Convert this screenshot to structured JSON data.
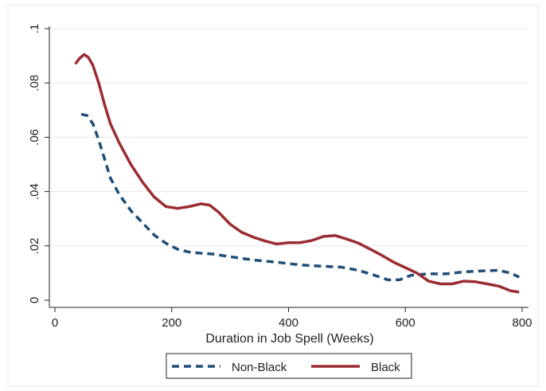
{
  "chart_data": {
    "type": "line",
    "title": "",
    "xlabel": "Duration in Job Spell (Weeks)",
    "ylabel": "",
    "xlim": [
      0,
      800
    ],
    "ylim": [
      0,
      0.1
    ],
    "x_ticks": [
      0,
      200,
      400,
      600,
      800
    ],
    "x_tick_labels": [
      "0",
      "200",
      "400",
      "600",
      "800"
    ],
    "y_ticks": [
      0,
      0.02,
      0.04,
      0.06,
      0.08,
      0.1
    ],
    "y_tick_labels": [
      "0",
      ".02",
      ".04",
      ".06",
      ".08",
      ".1"
    ],
    "grid": "horizontal",
    "legend_position": "bottom",
    "series": [
      {
        "name": "Non-Black",
        "style": "dashed",
        "color": "#1f4e79",
        "x": [
          45,
          55,
          65,
          75,
          85,
          95,
          110,
          130,
          150,
          170,
          190,
          210,
          230,
          250,
          270,
          300,
          340,
          380,
          420,
          460,
          490,
          520,
          550,
          570,
          590,
          610,
          640,
          670,
          700,
          730,
          760,
          780,
          795
        ],
        "y": [
          0.0685,
          0.068,
          0.065,
          0.059,
          0.052,
          0.045,
          0.039,
          0.033,
          0.0285,
          0.024,
          0.021,
          0.0188,
          0.0177,
          0.0173,
          0.017,
          0.016,
          0.0148,
          0.014,
          0.013,
          0.0125,
          0.0122,
          0.011,
          0.009,
          0.0075,
          0.0075,
          0.0092,
          0.0097,
          0.0097,
          0.0104,
          0.0108,
          0.011,
          0.01,
          0.0085
        ]
      },
      {
        "name": "Black",
        "style": "solid",
        "color": "#9b2c31",
        "x": [
          35,
          42,
          50,
          57,
          65,
          75,
          85,
          95,
          110,
          130,
          150,
          170,
          190,
          210,
          230,
          250,
          265,
          280,
          300,
          320,
          340,
          360,
          380,
          400,
          420,
          440,
          460,
          480,
          500,
          520,
          540,
          560,
          580,
          600,
          620,
          640,
          660,
          680,
          700,
          720,
          740,
          760,
          780,
          795
        ],
        "y": [
          0.087,
          0.089,
          0.0905,
          0.0895,
          0.0865,
          0.08,
          0.072,
          0.065,
          0.058,
          0.05,
          0.0435,
          0.038,
          0.0345,
          0.0338,
          0.0345,
          0.0355,
          0.035,
          0.0325,
          0.028,
          0.025,
          0.0232,
          0.0218,
          0.0207,
          0.0212,
          0.0212,
          0.022,
          0.0235,
          0.0238,
          0.0225,
          0.021,
          0.0188,
          0.0165,
          0.014,
          0.012,
          0.01,
          0.007,
          0.006,
          0.006,
          0.007,
          0.0068,
          0.006,
          0.0052,
          0.0035,
          0.003
        ]
      }
    ]
  }
}
